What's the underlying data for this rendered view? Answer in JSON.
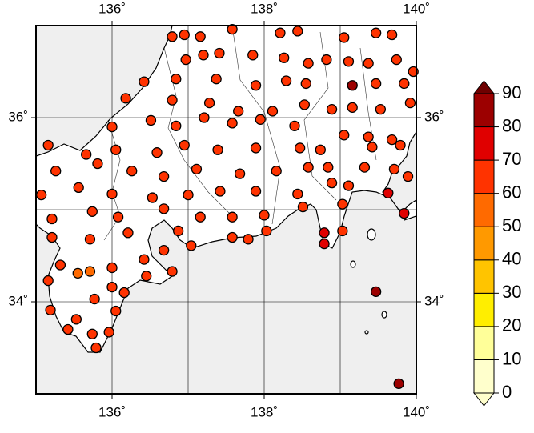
{
  "chart_data": {
    "type": "map",
    "xlim": [
      135,
      140
    ],
    "ylim": [
      33,
      37
    ],
    "xticks": [
      {
        "value": 136,
        "label": "136˚"
      },
      {
        "value": 138,
        "label": "138˚"
      },
      {
        "value": 140,
        "label": "140˚"
      }
    ],
    "yticks": [
      {
        "value": 34,
        "label": "34˚"
      },
      {
        "value": 36,
        "label": "36˚"
      }
    ],
    "xgrid": [
      136,
      137,
      138,
      139
    ],
    "ygrid": [
      34,
      35,
      36
    ],
    "colorbar": {
      "ticks": [
        0,
        10,
        20,
        30,
        40,
        50,
        60,
        70,
        80,
        90
      ],
      "colors": [
        "#ffffcc",
        "#ffff99",
        "#ffee00",
        "#ffc400",
        "#ff9900",
        "#ff6a00",
        "#ff3300",
        "#e00000",
        "#9c0000"
      ],
      "under": "#ffffcc",
      "over": "#6e0000"
    },
    "lon": [
      136.79,
      136.95,
      137.16,
      137.58,
      138.21,
      138.44,
      139.05,
      139.47,
      139.68,
      136.97,
      137.2,
      137.41,
      137.85,
      138.26,
      138.58,
      138.82,
      139.11,
      139.37,
      139.74,
      139.96,
      136.42,
      136.84,
      137.37,
      137.89,
      138.29,
      138.55,
      139.16,
      139.47,
      139.84,
      136.18,
      136.79,
      137.28,
      137.66,
      138.11,
      138.53,
      138.89,
      139.16,
      139.53,
      139.92,
      136.0,
      136.51,
      136.84,
      137.21,
      137.58,
      137.95,
      138.4,
      139.05,
      139.37,
      139.68,
      135.16,
      135.66,
      136.05,
      136.59,
      136.95,
      137.39,
      137.89,
      138.47,
      138.74,
      139.42,
      139.79,
      135.26,
      135.81,
      136.26,
      136.68,
      137.11,
      137.68,
      138.16,
      138.58,
      138.84,
      139.32,
      139.71,
      135.07,
      135.56,
      136.0,
      136.53,
      137.0,
      137.42,
      137.89,
      138.44,
      138.89,
      139.11,
      139.63,
      139.89,
      135.21,
      135.74,
      136.08,
      136.68,
      137.16,
      137.58,
      138.0,
      138.51,
      139.03,
      139.84,
      135.21,
      135.71,
      136.21,
      136.87,
      137.04,
      137.58,
      137.79,
      138.03,
      138.79,
      139.03,
      138.79,
      135.32,
      135.71,
      136.0,
      136.42,
      136.79,
      135.16,
      135.55,
      136.0,
      136.16,
      139.47,
      135.19,
      135.77,
      136.05,
      135.53,
      135.42,
      135.74,
      135.96,
      135.79,
      139.77,
      136.45,
      136.68
    ],
    "lat": [
      36.88,
      36.9,
      36.88,
      36.96,
      36.92,
      36.94,
      36.87,
      36.92,
      36.9,
      36.63,
      36.68,
      36.7,
      36.68,
      36.65,
      36.59,
      36.63,
      36.61,
      36.59,
      36.63,
      36.5,
      36.39,
      36.42,
      36.42,
      36.35,
      36.4,
      36.37,
      36.35,
      36.37,
      36.37,
      36.21,
      36.19,
      36.16,
      36.07,
      36.07,
      36.14,
      36.09,
      36.11,
      36.09,
      36.16,
      35.9,
      35.97,
      35.91,
      36.0,
      35.94,
      35.98,
      35.91,
      35.81,
      35.79,
      35.76,
      35.7,
      35.6,
      35.65,
      35.62,
      35.7,
      35.65,
      35.67,
      35.67,
      35.65,
      35.68,
      35.7,
      35.42,
      35.5,
      35.42,
      35.36,
      35.44,
      35.39,
      35.42,
      35.46,
      35.46,
      35.46,
      35.44,
      35.16,
      35.24,
      35.17,
      35.13,
      35.16,
      35.2,
      35.2,
      35.17,
      35.29,
      35.26,
      35.18,
      35.36,
      34.9,
      34.98,
      34.92,
      35.01,
      34.92,
      34.92,
      34.94,
      35.03,
      35.06,
      34.96,
      34.7,
      34.68,
      34.75,
      34.77,
      34.61,
      34.7,
      34.68,
      34.77,
      34.75,
      34.77,
      34.63,
      34.4,
      34.33,
      34.37,
      34.46,
      34.33,
      34.23,
      34.31,
      34.16,
      34.1,
      34.11,
      33.91,
      34.03,
      33.9,
      33.81,
      33.7,
      33.65,
      33.67,
      33.5,
      33.11,
      34.28,
      34.56
    ],
    "values": [
      65,
      65,
      60,
      65,
      65,
      65,
      65,
      60,
      65,
      65,
      60,
      65,
      65,
      65,
      60,
      65,
      65,
      65,
      65,
      60,
      65,
      60,
      65,
      65,
      60,
      60,
      80,
      65,
      65,
      65,
      65,
      60,
      65,
      60,
      60,
      65,
      65,
      60,
      60,
      65,
      60,
      65,
      60,
      65,
      65,
      60,
      65,
      65,
      65,
      65,
      65,
      65,
      60,
      65,
      65,
      65,
      60,
      60,
      65,
      65,
      65,
      65,
      65,
      60,
      65,
      60,
      65,
      60,
      65,
      65,
      65,
      65,
      60,
      65,
      60,
      65,
      60,
      65,
      65,
      60,
      65,
      75,
      65,
      65,
      65,
      65,
      60,
      65,
      65,
      60,
      65,
      65,
      70,
      60,
      65,
      65,
      65,
      65,
      65,
      65,
      65,
      70,
      65,
      70,
      65,
      55,
      65,
      65,
      65,
      65,
      55,
      65,
      65,
      80,
      65,
      65,
      65,
      65,
      65,
      65,
      65,
      65,
      80,
      65,
      65
    ]
  }
}
